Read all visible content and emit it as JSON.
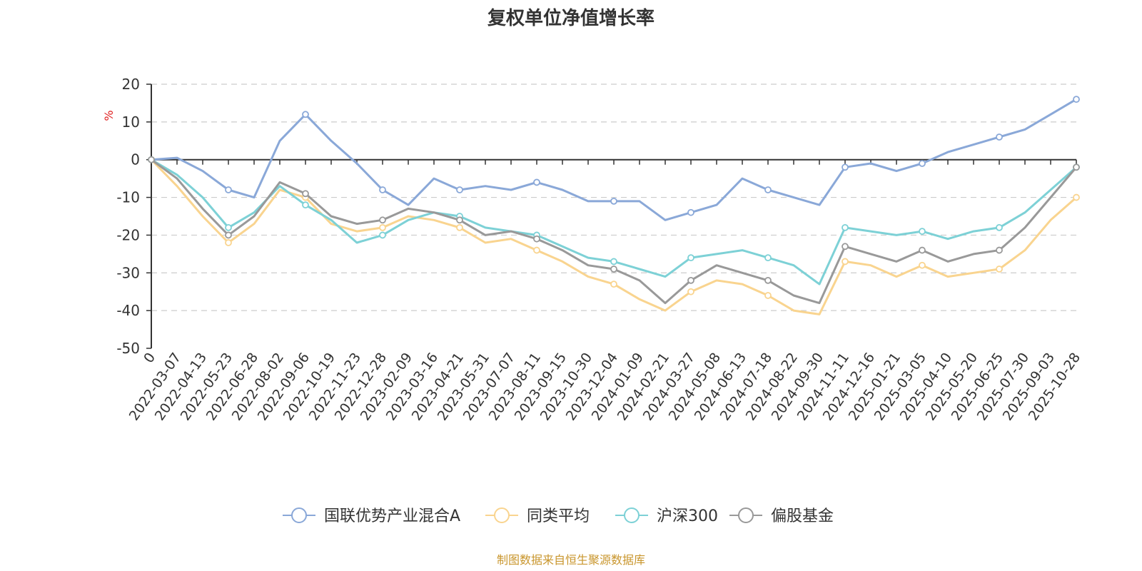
{
  "chart_data": {
    "type": "line",
    "title": "复权单位净值增长率",
    "ylabel": "%",
    "ylim": [
      -50,
      20
    ],
    "yticks": [
      "20",
      "10",
      "0",
      "-10",
      "-20",
      "-30",
      "-40",
      "-50"
    ],
    "ytick_values": [
      20,
      10,
      0,
      -10,
      -20,
      -30,
      -40,
      -50
    ],
    "grid": "horizontal dashed",
    "legend_position": "bottom-center",
    "x": [
      "0",
      "2022-03-07",
      "2022-04-13",
      "2022-05-23",
      "2022-06-28",
      "2022-08-02",
      "2022-09-06",
      "2022-10-19",
      "2022-11-23",
      "2022-12-28",
      "2023-02-09",
      "2023-03-16",
      "2023-04-21",
      "2023-05-31",
      "2023-07-07",
      "2023-08-11",
      "2023-09-15",
      "2023-10-30",
      "2023-12-04",
      "2024-01-09",
      "2024-02-21",
      "2024-03-27",
      "2024-05-08",
      "2024-06-13",
      "2024-07-18",
      "2024-08-22",
      "2024-09-30",
      "2024-11-11",
      "2024-12-16",
      "2025-01-21",
      "2025-03-05",
      "2025-04-10",
      "2025-05-20",
      "2025-06-25",
      "2025-07-30",
      "2025-09-03",
      "2025-10-28"
    ],
    "series": [
      {
        "name": "国联优势产业混合A",
        "color": "#8aa8d8",
        "values": [
          0,
          0.5,
          -3,
          -8,
          -10,
          5,
          12,
          5,
          -1,
          -8,
          -12,
          -5,
          -8,
          -7,
          -8,
          -6,
          -8,
          -11,
          -11,
          -11,
          -16,
          -14,
          -12,
          -5,
          -8,
          -10,
          -12,
          -2,
          -1,
          -3,
          -1,
          2,
          4,
          6,
          8,
          12,
          16
        ]
      },
      {
        "name": "同类平均",
        "color": "#f9d48f",
        "values": [
          0,
          -7,
          -15,
          -22,
          -17,
          -8,
          -10,
          -17,
          -19,
          -18,
          -15,
          -16,
          -18,
          -22,
          -21,
          -24,
          -27,
          -31,
          -33,
          -37,
          -40,
          -35,
          -32,
          -33,
          -36,
          -40,
          -41,
          -27,
          -28,
          -31,
          -28,
          -31,
          -30,
          -29,
          -24,
          -16,
          -10
        ]
      },
      {
        "name": "沪深300",
        "color": "#7dd1d6",
        "values": [
          0,
          -4,
          -10,
          -18,
          -14,
          -7,
          -12,
          -16,
          -22,
          -20,
          -16,
          -14,
          -15,
          -18,
          -19,
          -20,
          -23,
          -26,
          -27,
          -29,
          -31,
          -26,
          -25,
          -24,
          -26,
          -28,
          -33,
          -18,
          -19,
          -20,
          -19,
          -21,
          -19,
          -18,
          -14,
          -8,
          -2
        ]
      },
      {
        "name": "偏股基金",
        "color": "#999999",
        "values": [
          0,
          -5,
          -13,
          -20,
          -15,
          -6,
          -9,
          -15,
          -17,
          -16,
          -13,
          -14,
          -16,
          -20,
          -19,
          -21,
          -24,
          -28,
          -29,
          -32,
          -38,
          -32,
          -28,
          -30,
          -32,
          -36,
          -38,
          -23,
          -25,
          -27,
          -24,
          -27,
          -25,
          -24,
          -18,
          -10,
          -2
        ]
      }
    ]
  },
  "footer": {
    "source": "制图数据来自恒生聚源数据库"
  }
}
